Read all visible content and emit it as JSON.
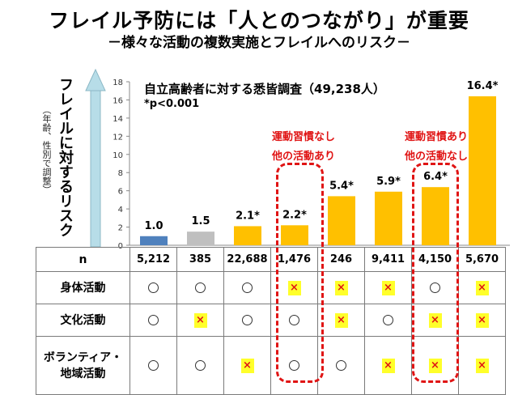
{
  "title": "フレイル予防には「人とのつながり」が重要",
  "subtitle": "－様々な活動の複数実施とフレイルへのリスク－",
  "ylabel_main": "フレイルに対するリスク",
  "ylabel_sub": "（年齢、性別で調整）",
  "survey_label": "自立高齢者に対する悉皆調査（49,238人）",
  "p_note": "*p<0.001",
  "annotations": [
    {
      "line1": "運動習慣なし",
      "line2": "他の活動あり"
    },
    {
      "line1": "運動習慣あり",
      "line2": "他の活動なし"
    }
  ],
  "colors": {
    "blue": "#4f81bd",
    "gray": "#bfbfbf",
    "gold": "#ffc000",
    "red": "#e01414",
    "yellow": "#ffff2a",
    "arrow": "#b7dde8"
  },
  "chart_data": {
    "type": "bar",
    "ylim": [
      0,
      18
    ],
    "yticks": [
      0,
      2,
      4,
      6,
      8,
      10,
      12,
      14,
      16,
      18
    ],
    "values": [
      1.0,
      1.5,
      2.1,
      2.2,
      5.4,
      5.9,
      6.4,
      16.4
    ],
    "value_labels": [
      "1.0",
      "1.5",
      "2.1*",
      "2.2*",
      "5.4*",
      "5.9*",
      "6.4*",
      "16.4*"
    ],
    "bar_colors": [
      "blue",
      "gray",
      "gold",
      "gold",
      "gold",
      "gold",
      "gold",
      "gold"
    ],
    "grid": false
  },
  "table": {
    "n_label": "n",
    "n_values": [
      "5,212",
      "385",
      "22,688",
      "1,476",
      "246",
      "9,411",
      "4,150",
      "5,670"
    ],
    "circle_symbol": "〇",
    "x_symbol": "×",
    "rows": [
      {
        "label_lines": [
          "身体活動"
        ],
        "marks": [
          "o",
          "o",
          "o",
          "x",
          "x",
          "x",
          "o",
          "x"
        ]
      },
      {
        "label_lines": [
          "文化活動"
        ],
        "marks": [
          "o",
          "x",
          "o",
          "o",
          "x",
          "o",
          "x",
          "x"
        ]
      },
      {
        "label_lines": [
          "ボランティア・",
          "地域活動"
        ],
        "marks": [
          "o",
          "o",
          "x",
          "o",
          "o",
          "x",
          "x",
          "x"
        ]
      }
    ]
  }
}
